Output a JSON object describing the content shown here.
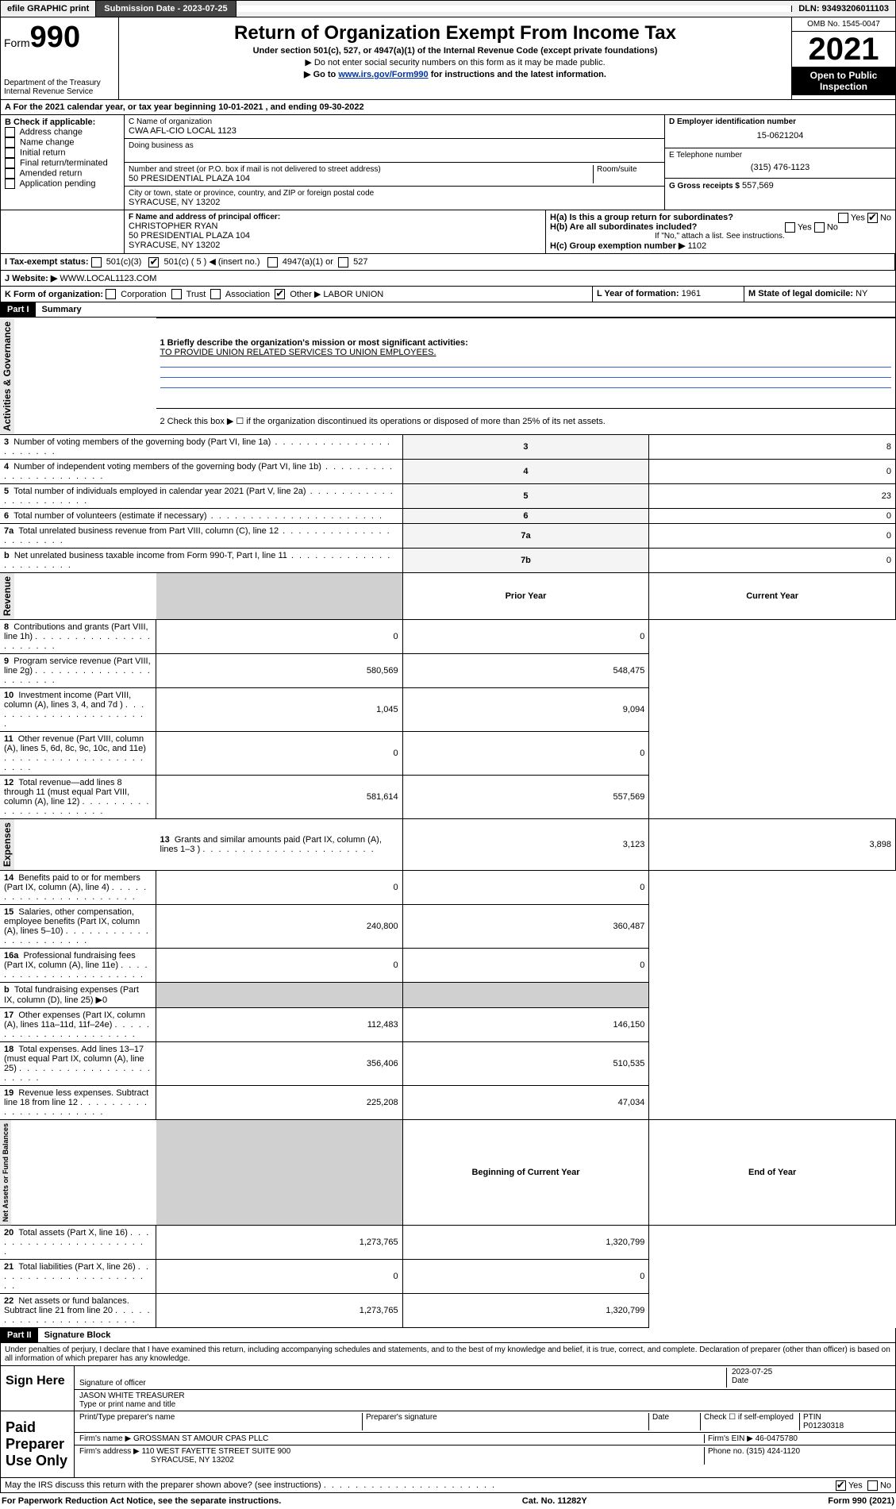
{
  "topbar": {
    "efile": "efile GRAPHIC print",
    "submission_label": "Submission Date - 2023-07-25",
    "dln": "DLN: 93493206011103"
  },
  "header": {
    "form_label": "Form",
    "form_number": "990",
    "dept": "Department of the Treasury",
    "irs": "Internal Revenue Service",
    "title": "Return of Organization Exempt From Income Tax",
    "sub1": "Under section 501(c), 527, or 4947(a)(1) of the Internal Revenue Code (except private foundations)",
    "arrow1": "▶ Do not enter social security numbers on this form as it may be made public.",
    "arrow2_pre": "▶ Go to ",
    "arrow2_link": "www.irs.gov/Form990",
    "arrow2_post": " for instructions and the latest information.",
    "omb": "OMB No. 1545-0047",
    "year": "2021",
    "inspection": "Open to Public Inspection"
  },
  "lineA": "For the 2021 calendar year, or tax year beginning 10-01-2021   , and ending 09-30-2022",
  "boxB": {
    "label": "B Check if applicable:",
    "items": [
      "Address change",
      "Name change",
      "Initial return",
      "Final return/terminated",
      "Amended return",
      "Application pending"
    ]
  },
  "boxC": {
    "label": "C Name of organization",
    "name": "CWA AFL-CIO LOCAL 1123",
    "dba_label": "Doing business as",
    "street_label": "Number and street (or P.O. box if mail is not delivered to street address)",
    "room_label": "Room/suite",
    "street": "50 PRESIDENTIAL PLAZA 104",
    "city_label": "City or town, state or province, country, and ZIP or foreign postal code",
    "city": "SYRACUSE, NY  13202"
  },
  "boxD": {
    "label": "D Employer identification number",
    "value": "15-0621204"
  },
  "boxE": {
    "label": "E Telephone number",
    "value": "(315) 476-1123"
  },
  "boxG": {
    "label": "G Gross receipts $",
    "value": "557,569"
  },
  "boxF": {
    "label": "F Name and address of principal officer:",
    "name": "CHRISTOPHER RYAN",
    "addr1": "50 PRESIDENTIAL PLAZA 104",
    "addr2": "SYRACUSE, NY  13202"
  },
  "boxH": {
    "a_label": "H(a)  Is this a group return for subordinates?",
    "a_yes": "Yes",
    "a_no": "No",
    "b_label": "H(b)  Are all subordinates included?",
    "b_yes": "Yes",
    "b_no": "No",
    "b_note": "If \"No,\" attach a list. See instructions.",
    "c_label": "H(c)  Group exemption number ▶",
    "c_value": "1102"
  },
  "lineI": {
    "label": "I   Tax-exempt status:",
    "o1": "501(c)(3)",
    "o2": "501(c) ( 5 ) ◀ (insert no.)",
    "o3": "4947(a)(1) or",
    "o4": "527"
  },
  "lineJ": {
    "label": "J   Website: ▶",
    "value": "WWW.LOCAL1123.COM"
  },
  "lineK": {
    "label": "K Form of organization:",
    "o1": "Corporation",
    "o2": "Trust",
    "o3": "Association",
    "o4": "Other ▶",
    "other_val": "LABOR UNION"
  },
  "lineL": {
    "label": "L Year of formation:",
    "value": "1961"
  },
  "lineM": {
    "label": "M State of legal domicile:",
    "value": "NY"
  },
  "part1": {
    "header": "Part I",
    "title": "Summary",
    "tab_ag": "Activities & Governance",
    "tab_rev": "Revenue",
    "tab_exp": "Expenses",
    "tab_na": "Net Assets or Fund Balances",
    "line1_label": "1  Briefly describe the organization's mission or most significant activities:",
    "line1_value": "TO PROVIDE UNION RELATED SERVICES TO UNION EMPLOYEES.",
    "line2": "2   Check this box ▶ ☐  if the organization discontinued its operations or disposed of more than 25% of its net assets.",
    "rows_ag": [
      {
        "n": "3",
        "label": "Number of voting members of the governing body (Part VI, line 1a)",
        "box": "3",
        "val": "8"
      },
      {
        "n": "4",
        "label": "Number of independent voting members of the governing body (Part VI, line 1b)",
        "box": "4",
        "val": "0"
      },
      {
        "n": "5",
        "label": "Total number of individuals employed in calendar year 2021 (Part V, line 2a)",
        "box": "5",
        "val": "23"
      },
      {
        "n": "6",
        "label": "Total number of volunteers (estimate if necessary)",
        "box": "6",
        "val": "0"
      },
      {
        "n": "7a",
        "label": "Total unrelated business revenue from Part VIII, column (C), line 12",
        "box": "7a",
        "val": "0"
      },
      {
        "n": "b",
        "label": "Net unrelated business taxable income from Form 990-T, Part I, line 11",
        "box": "7b",
        "val": "0"
      }
    ],
    "col_prior": "Prior Year",
    "col_current": "Current Year",
    "rows_rev": [
      {
        "n": "8",
        "label": "Contributions and grants (Part VIII, line 1h)",
        "p": "0",
        "c": "0"
      },
      {
        "n": "9",
        "label": "Program service revenue (Part VIII, line 2g)",
        "p": "580,569",
        "c": "548,475"
      },
      {
        "n": "10",
        "label": "Investment income (Part VIII, column (A), lines 3, 4, and 7d )",
        "p": "1,045",
        "c": "9,094"
      },
      {
        "n": "11",
        "label": "Other revenue (Part VIII, column (A), lines 5, 6d, 8c, 9c, 10c, and 11e)",
        "p": "0",
        "c": "0"
      },
      {
        "n": "12",
        "label": "Total revenue—add lines 8 through 11 (must equal Part VIII, column (A), line 12)",
        "p": "581,614",
        "c": "557,569"
      }
    ],
    "rows_exp": [
      {
        "n": "13",
        "label": "Grants and similar amounts paid (Part IX, column (A), lines 1–3 )",
        "p": "3,123",
        "c": "3,898"
      },
      {
        "n": "14",
        "label": "Benefits paid to or for members (Part IX, column (A), line 4)",
        "p": "0",
        "c": "0"
      },
      {
        "n": "15",
        "label": "Salaries, other compensation, employee benefits (Part IX, column (A), lines 5–10)",
        "p": "240,800",
        "c": "360,487"
      },
      {
        "n": "16a",
        "label": "Professional fundraising fees (Part IX, column (A), line 11e)",
        "p": "0",
        "c": "0"
      },
      {
        "n": "b",
        "label": "Total fundraising expenses (Part IX, column (D), line 25) ▶0",
        "p": "",
        "c": "",
        "gray": true
      },
      {
        "n": "17",
        "label": "Other expenses (Part IX, column (A), lines 11a–11d, 11f–24e)",
        "p": "112,483",
        "c": "146,150"
      },
      {
        "n": "18",
        "label": "Total expenses. Add lines 13–17 (must equal Part IX, column (A), line 25)",
        "p": "356,406",
        "c": "510,535"
      },
      {
        "n": "19",
        "label": "Revenue less expenses. Subtract line 18 from line 12",
        "p": "225,208",
        "c": "47,034"
      }
    ],
    "col_beg": "Beginning of Current Year",
    "col_end": "End of Year",
    "rows_na": [
      {
        "n": "20",
        "label": "Total assets (Part X, line 16)",
        "p": "1,273,765",
        "c": "1,320,799"
      },
      {
        "n": "21",
        "label": "Total liabilities (Part X, line 26)",
        "p": "0",
        "c": "0"
      },
      {
        "n": "22",
        "label": "Net assets or fund balances. Subtract line 21 from line 20",
        "p": "1,273,765",
        "c": "1,320,799"
      }
    ]
  },
  "part2": {
    "header": "Part II",
    "title": "Signature Block",
    "decl": "Under penalties of perjury, I declare that I have examined this return, including accompanying schedules and statements, and to the best of my knowledge and belief, it is true, correct, and complete. Declaration of preparer (other than officer) is based on all information of which preparer has any knowledge.",
    "sign_here": "Sign Here",
    "sig_officer": "Signature of officer",
    "date_label": "Date",
    "date_value": "2023-07-25",
    "name_title": "JASON WHITE TREASURER",
    "name_title_label": "Type or print name and title",
    "paid": "Paid Preparer Use Only",
    "prep_name_label": "Print/Type preparer's name",
    "prep_sig_label": "Preparer's signature",
    "check_if": "Check ☐ if self-employed",
    "ptin_label": "PTIN",
    "ptin": "P01230318",
    "firm_name_label": "Firm's name    ▶",
    "firm_name": "GROSSMAN ST AMOUR CPAS PLLC",
    "firm_ein_label": "Firm's EIN ▶",
    "firm_ein": "46-0475780",
    "firm_addr_label": "Firm's address ▶",
    "firm_addr1": "110 WEST FAYETTE STREET SUITE 900",
    "firm_addr2": "SYRACUSE, NY  13202",
    "phone_label": "Phone no.",
    "phone": "(315) 424-1120",
    "discuss": "May the IRS discuss this return with the preparer shown above? (see instructions)",
    "yes": "Yes",
    "no": "No"
  },
  "footer": {
    "left": "For Paperwork Reduction Act Notice, see the separate instructions.",
    "mid": "Cat. No. 11282Y",
    "right": "Form 990 (2021)"
  }
}
